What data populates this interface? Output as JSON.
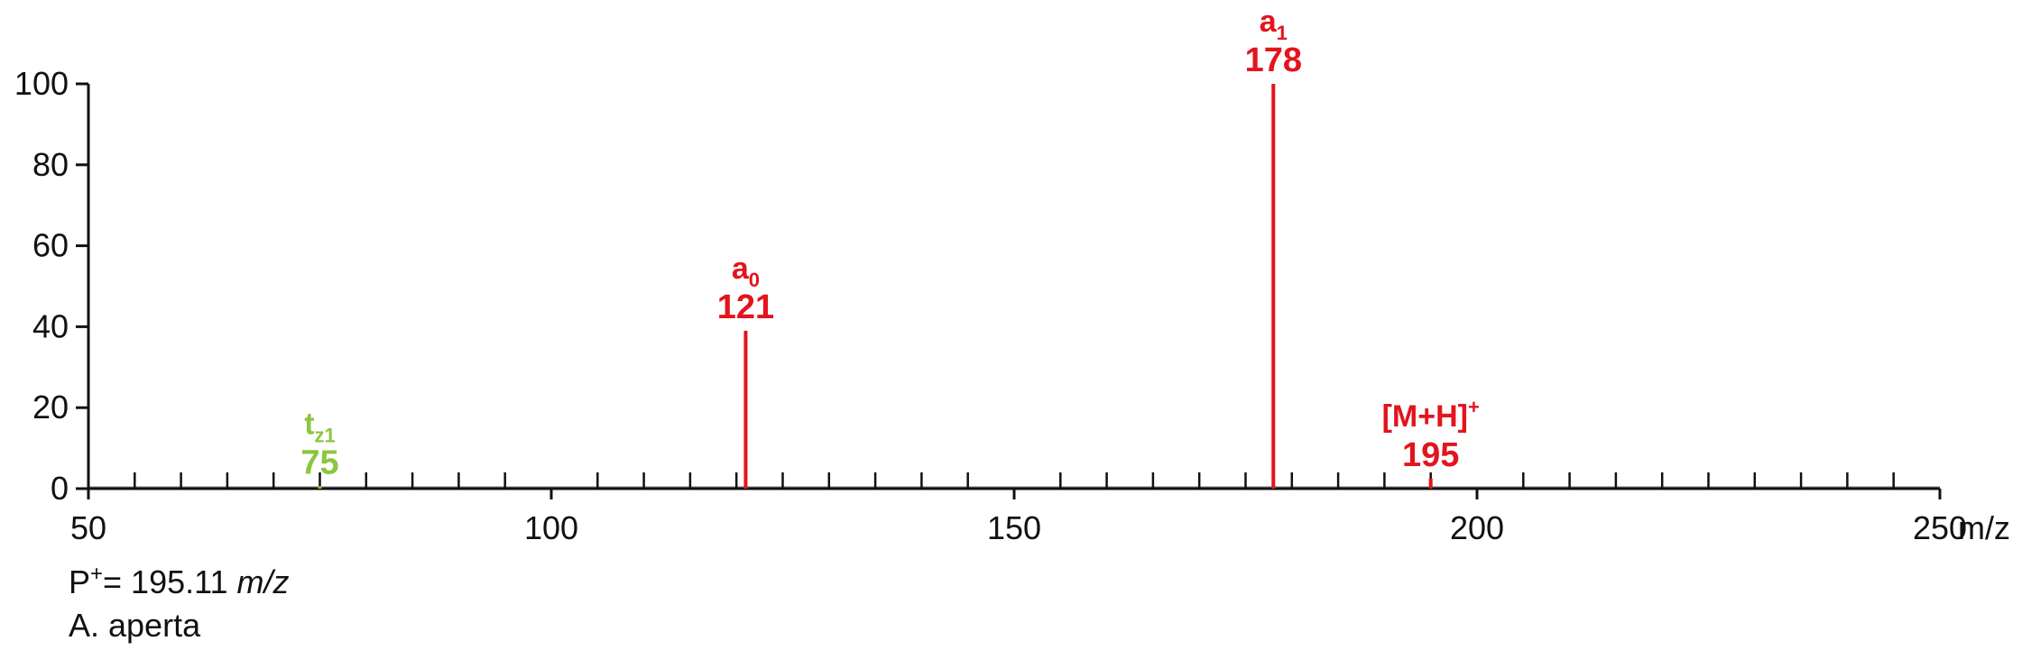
{
  "chart_data": {
    "type": "bar",
    "xlabel": "m/z",
    "ylabel": "",
    "xlim": [
      50,
      250
    ],
    "ylim": [
      0,
      100
    ],
    "x_ticks_major": [
      50,
      100,
      150,
      200,
      250
    ],
    "x_tick_labels": [
      "50",
      "100",
      "150",
      "200",
      "250"
    ],
    "x_minor_step": 5,
    "y_ticks": [
      0,
      20,
      40,
      60,
      80,
      100
    ],
    "y_tick_labels": [
      "0",
      "20",
      "40",
      "60",
      "80",
      "100"
    ],
    "grid": false,
    "series": [
      {
        "points": [
          {
            "mz": 75,
            "intensity": 0.6,
            "label": "t",
            "label_sub": "z1",
            "value_label": "75",
            "color": "#8cc63f"
          },
          {
            "mz": 121,
            "intensity": 39,
            "label": "a",
            "label_sub": "0",
            "value_label": "121",
            "color": "#e3141e"
          },
          {
            "mz": 178,
            "intensity": 100,
            "label": "a",
            "label_sub": "1",
            "value_label": "178",
            "color": "#e3141e"
          },
          {
            "mz": 195,
            "intensity": 2.5,
            "label": "[M+H]",
            "label_sup": "+",
            "value_label": "195",
            "color": "#e3141e"
          }
        ]
      }
    ]
  },
  "caption": {
    "precursor_prefix": "P",
    "precursor_sup": "+",
    "precursor_value": "= 195.11 ",
    "precursor_unit": "m/z",
    "species": "A. aperta"
  },
  "colors": {
    "axis": "#111111",
    "red": "#e3141e",
    "green": "#8cc63f"
  }
}
